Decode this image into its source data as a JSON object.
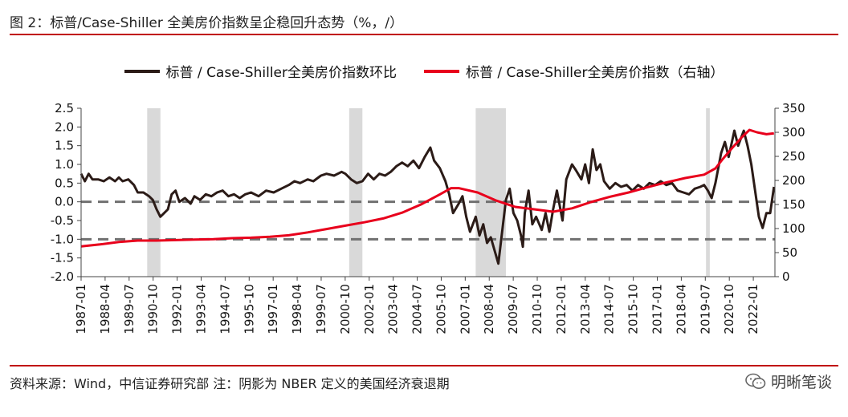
{
  "header": {
    "title": "图 2：标普/Case-Shiller 全美房价指数呈企稳回升态势（%，/）"
  },
  "footer": {
    "source": "资料来源：Wind，中信证券研究部  注：阴影为 NBER 定义的美国经济衰退期",
    "watermark": "明晰笔谈"
  },
  "colors": {
    "accent": "#c00000",
    "mom_line": "#2b1b17",
    "index_line": "#e8001c",
    "shade": "#d9d9d9",
    "dash": "#707070"
  },
  "chart_data": {
    "type": "line",
    "legend": [
      {
        "name": "标普 / Case-Shiller全美房价指数环比",
        "color": "#2b1b17",
        "axis": "left"
      },
      {
        "name": "标普 / Case-Shiller全美房价指数（右轴）",
        "color": "#e8001c",
        "axis": "right"
      }
    ],
    "x_ticks": [
      "1987-01",
      "1988-04",
      "1989-07",
      "1990-10",
      "1992-01",
      "1993-04",
      "1994-07",
      "1995-10",
      "1997-01",
      "1998-04",
      "1999-07",
      "2000-10",
      "2002-01",
      "2003-04",
      "2004-07",
      "2005-10",
      "2007-01",
      "2008-04",
      "2009-07",
      "2010-10",
      "2012-01",
      "2013-04",
      "2014-07",
      "2015-10",
      "2017-01",
      "2018-04",
      "2019-07",
      "2020-10",
      "2022-01"
    ],
    "y_left": {
      "min": -2.0,
      "max": 2.5,
      "ticks": [
        "-2.0",
        "-1.5",
        "-1.0",
        "-0.5",
        "0.0",
        "0.5",
        "1.0",
        "1.5",
        "2.0",
        "2.5"
      ]
    },
    "y_right": {
      "min": 0,
      "max": 350,
      "ticks": [
        "0",
        "50",
        "100",
        "150",
        "200",
        "250",
        "300",
        "350"
      ]
    },
    "reference_lines_left": [
      0.0,
      -1.0
    ],
    "recessions": [
      {
        "start": 1990.5,
        "end": 1991.2
      },
      {
        "start": 2001.2,
        "end": 2001.9
      },
      {
        "start": 2007.9,
        "end": 2009.5
      },
      {
        "start": 2020.1,
        "end": 2020.3
      }
    ],
    "series": [
      {
        "name": "标普 / Case-Shiller全美房价指数环比",
        "axis": "left",
        "points": [
          [
            1987.0,
            0.75
          ],
          [
            1987.2,
            0.55
          ],
          [
            1987.4,
            0.75
          ],
          [
            1987.6,
            0.6
          ],
          [
            1987.9,
            0.6
          ],
          [
            1988.2,
            0.55
          ],
          [
            1988.5,
            0.65
          ],
          [
            1988.8,
            0.55
          ],
          [
            1989.0,
            0.65
          ],
          [
            1989.2,
            0.55
          ],
          [
            1989.5,
            0.6
          ],
          [
            1989.8,
            0.45
          ],
          [
            1990.0,
            0.25
          ],
          [
            1990.3,
            0.25
          ],
          [
            1990.6,
            0.15
          ],
          [
            1990.8,
            0.05
          ],
          [
            1991.0,
            -0.2
          ],
          [
            1991.2,
            -0.4
          ],
          [
            1991.4,
            -0.3
          ],
          [
            1991.6,
            -0.2
          ],
          [
            1991.8,
            0.2
          ],
          [
            1992.0,
            0.3
          ],
          [
            1992.2,
            0.0
          ],
          [
            1992.5,
            0.1
          ],
          [
            1992.8,
            -0.05
          ],
          [
            1993.0,
            0.15
          ],
          [
            1993.3,
            0.05
          ],
          [
            1993.6,
            0.2
          ],
          [
            1993.9,
            0.15
          ],
          [
            1994.2,
            0.25
          ],
          [
            1994.5,
            0.3
          ],
          [
            1994.8,
            0.15
          ],
          [
            1995.1,
            0.2
          ],
          [
            1995.4,
            0.1
          ],
          [
            1995.7,
            0.2
          ],
          [
            1996.0,
            0.25
          ],
          [
            1996.4,
            0.15
          ],
          [
            1996.8,
            0.3
          ],
          [
            1997.2,
            0.25
          ],
          [
            1997.6,
            0.35
          ],
          [
            1998.0,
            0.45
          ],
          [
            1998.3,
            0.55
          ],
          [
            1998.6,
            0.5
          ],
          [
            1999.0,
            0.6
          ],
          [
            1999.3,
            0.55
          ],
          [
            1999.7,
            0.7
          ],
          [
            2000.0,
            0.75
          ],
          [
            2000.4,
            0.7
          ],
          [
            2000.8,
            0.8
          ],
          [
            2001.0,
            0.75
          ],
          [
            2001.3,
            0.6
          ],
          [
            2001.6,
            0.5
          ],
          [
            2001.9,
            0.55
          ],
          [
            2002.2,
            0.75
          ],
          [
            2002.5,
            0.6
          ],
          [
            2002.8,
            0.75
          ],
          [
            2003.1,
            0.7
          ],
          [
            2003.4,
            0.8
          ],
          [
            2003.7,
            0.95
          ],
          [
            2004.0,
            1.05
          ],
          [
            2004.3,
            0.95
          ],
          [
            2004.6,
            1.1
          ],
          [
            2004.9,
            0.9
          ],
          [
            2005.2,
            1.2
          ],
          [
            2005.5,
            1.45
          ],
          [
            2005.7,
            1.1
          ],
          [
            2006.0,
            0.9
          ],
          [
            2006.3,
            0.55
          ],
          [
            2006.5,
            0.2
          ],
          [
            2006.7,
            -0.3
          ],
          [
            2007.0,
            -0.05
          ],
          [
            2007.2,
            0.15
          ],
          [
            2007.4,
            -0.4
          ],
          [
            2007.6,
            -0.8
          ],
          [
            2007.9,
            -0.4
          ],
          [
            2008.1,
            -0.9
          ],
          [
            2008.3,
            -0.6
          ],
          [
            2008.5,
            -1.1
          ],
          [
            2008.7,
            -0.95
          ],
          [
            2008.9,
            -1.3
          ],
          [
            2009.1,
            -1.65
          ],
          [
            2009.3,
            -0.8
          ],
          [
            2009.5,
            0.05
          ],
          [
            2009.7,
            0.35
          ],
          [
            2009.9,
            -0.3
          ],
          [
            2010.1,
            -0.5
          ],
          [
            2010.3,
            -0.9
          ],
          [
            2010.4,
            -1.2
          ],
          [
            2010.5,
            -0.3
          ],
          [
            2010.7,
            0.3
          ],
          [
            2010.9,
            -0.6
          ],
          [
            2011.1,
            -0.4
          ],
          [
            2011.4,
            -0.75
          ],
          [
            2011.6,
            -0.3
          ],
          [
            2011.8,
            -0.8
          ],
          [
            2012.0,
            -0.2
          ],
          [
            2012.2,
            0.3
          ],
          [
            2012.5,
            -0.5
          ],
          [
            2012.7,
            0.6
          ],
          [
            2013.0,
            1.0
          ],
          [
            2013.2,
            0.85
          ],
          [
            2013.5,
            0.6
          ],
          [
            2013.7,
            1.0
          ],
          [
            2013.9,
            0.5
          ],
          [
            2014.1,
            1.4
          ],
          [
            2014.3,
            0.85
          ],
          [
            2014.5,
            1.0
          ],
          [
            2014.7,
            0.55
          ],
          [
            2015.0,
            0.35
          ],
          [
            2015.3,
            0.5
          ],
          [
            2015.6,
            0.4
          ],
          [
            2015.9,
            0.45
          ],
          [
            2016.2,
            0.3
          ],
          [
            2016.5,
            0.45
          ],
          [
            2016.8,
            0.35
          ],
          [
            2017.1,
            0.5
          ],
          [
            2017.4,
            0.45
          ],
          [
            2017.7,
            0.55
          ],
          [
            2018.0,
            0.45
          ],
          [
            2018.3,
            0.5
          ],
          [
            2018.6,
            0.3
          ],
          [
            2018.9,
            0.25
          ],
          [
            2019.2,
            0.2
          ],
          [
            2019.5,
            0.35
          ],
          [
            2019.8,
            0.4
          ],
          [
            2020.0,
            0.45
          ],
          [
            2020.2,
            0.3
          ],
          [
            2020.4,
            0.1
          ],
          [
            2020.6,
            0.5
          ],
          [
            2020.9,
            1.3
          ],
          [
            2021.1,
            1.6
          ],
          [
            2021.3,
            1.2
          ],
          [
            2021.6,
            1.9
          ],
          [
            2021.8,
            1.5
          ],
          [
            2022.1,
            1.9
          ],
          [
            2022.3,
            1.5
          ],
          [
            2022.5,
            1.0
          ],
          [
            2022.7,
            0.3
          ],
          [
            2022.9,
            -0.4
          ],
          [
            2023.1,
            -0.7
          ],
          [
            2023.3,
            -0.3
          ],
          [
            2023.5,
            -0.3
          ],
          [
            2023.7,
            0.4
          ]
        ]
      },
      {
        "name": "标普 / Case-Shiller全美房价指数（右轴）",
        "axis": "right",
        "points": [
          [
            1987.0,
            63
          ],
          [
            1988.0,
            67
          ],
          [
            1989.0,
            72
          ],
          [
            1990.0,
            75
          ],
          [
            1991.0,
            75
          ],
          [
            1992.0,
            76
          ],
          [
            1993.0,
            77
          ],
          [
            1994.0,
            78
          ],
          [
            1995.0,
            80
          ],
          [
            1996.0,
            81
          ],
          [
            1997.0,
            83
          ],
          [
            1998.0,
            86
          ],
          [
            1999.0,
            92
          ],
          [
            2000.0,
            99
          ],
          [
            2001.0,
            106
          ],
          [
            2002.0,
            113
          ],
          [
            2003.0,
            121
          ],
          [
            2004.0,
            133
          ],
          [
            2005.0,
            150
          ],
          [
            2006.0,
            171
          ],
          [
            2006.6,
            184
          ],
          [
            2007.0,
            184
          ],
          [
            2008.0,
            175
          ],
          [
            2009.0,
            158
          ],
          [
            2010.0,
            145
          ],
          [
            2011.0,
            140
          ],
          [
            2012.0,
            135
          ],
          [
            2013.0,
            142
          ],
          [
            2014.0,
            155
          ],
          [
            2015.0,
            166
          ],
          [
            2016.0,
            175
          ],
          [
            2017.0,
            186
          ],
          [
            2018.0,
            196
          ],
          [
            2019.0,
            205
          ],
          [
            2020.0,
            212
          ],
          [
            2020.6,
            225
          ],
          [
            2021.0,
            245
          ],
          [
            2021.5,
            268
          ],
          [
            2022.0,
            290
          ],
          [
            2022.4,
            305
          ],
          [
            2022.8,
            300
          ],
          [
            2023.3,
            296
          ],
          [
            2023.7,
            298
          ]
        ]
      }
    ]
  }
}
